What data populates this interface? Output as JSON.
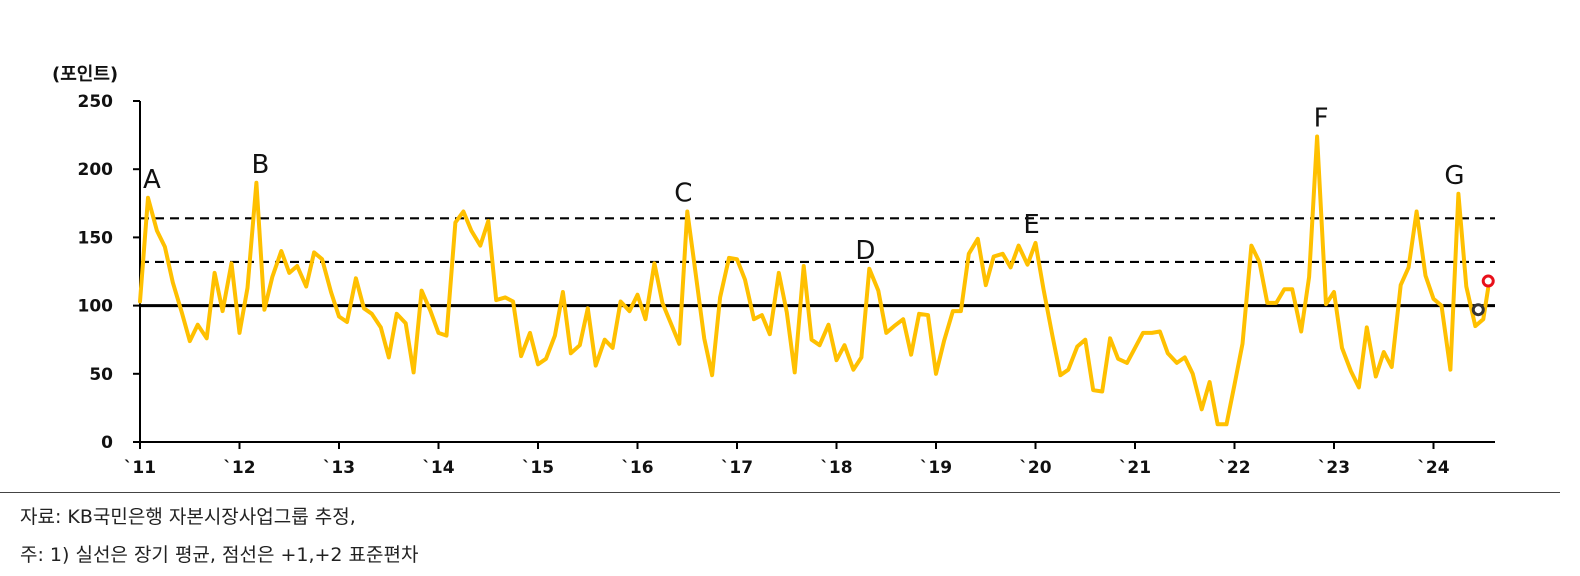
{
  "chart_data": {
    "type": "line",
    "unit_label": "(포인트)",
    "ylim": [
      0,
      250
    ],
    "yticks": [
      0,
      50,
      100,
      150,
      200,
      250
    ],
    "xlim": [
      2011.0,
      2024.55
    ],
    "xticks": [
      {
        "x": 2011,
        "label": "`11"
      },
      {
        "x": 2012,
        "label": "`12"
      },
      {
        "x": 2013,
        "label": "`13"
      },
      {
        "x": 2014,
        "label": "`14"
      },
      {
        "x": 2015,
        "label": "`15"
      },
      {
        "x": 2016,
        "label": "`16"
      },
      {
        "x": 2017,
        "label": "`17"
      },
      {
        "x": 2018,
        "label": "`18"
      },
      {
        "x": 2019,
        "label": "`19"
      },
      {
        "x": 2020,
        "label": "`20"
      },
      {
        "x": 2021,
        "label": "`21"
      },
      {
        "x": 2022,
        "label": "`22"
      },
      {
        "x": 2023,
        "label": "`23"
      },
      {
        "x": 2024,
        "label": "`24"
      }
    ],
    "reference_lines": [
      {
        "y": 100,
        "style": "solid"
      },
      {
        "y": 132,
        "style": "dashed"
      },
      {
        "y": 164,
        "style": "dashed"
      }
    ],
    "series": [
      {
        "color": "#FFC000",
        "x": [
          2011.0,
          2011.08,
          2011.17,
          2011.25,
          2011.33,
          2011.42,
          2011.5,
          2011.58,
          2011.67,
          2011.75,
          2011.83,
          2011.92,
          2012.0,
          2012.08,
          2012.17,
          2012.25,
          2012.33,
          2012.42,
          2012.5,
          2012.58,
          2012.67,
          2012.75,
          2012.83,
          2012.92,
          2013.0,
          2013.08,
          2013.17,
          2013.25,
          2013.33,
          2013.42,
          2013.5,
          2013.58,
          2013.67,
          2013.75,
          2013.83,
          2013.92,
          2014.0,
          2014.08,
          2014.17,
          2014.25,
          2014.33,
          2014.42,
          2014.5,
          2014.58,
          2014.67,
          2014.75,
          2014.83,
          2014.92,
          2015.0,
          2015.08,
          2015.17,
          2015.25,
          2015.33,
          2015.42,
          2015.5,
          2015.58,
          2015.67,
          2015.75,
          2015.83,
          2015.92,
          2016.0,
          2016.08,
          2016.17,
          2016.25,
          2016.33,
          2016.42,
          2016.5,
          2016.58,
          2016.67,
          2016.75,
          2016.83,
          2016.92,
          2017.0,
          2017.08,
          2017.17,
          2017.25,
          2017.33,
          2017.42,
          2017.5,
          2017.58,
          2017.67,
          2017.75,
          2017.83,
          2017.92,
          2018.0,
          2018.08,
          2018.17,
          2018.25,
          2018.33,
          2018.42,
          2018.5,
          2018.58,
          2018.67,
          2018.75,
          2018.83,
          2018.92,
          2019.0,
          2019.08,
          2019.17,
          2019.25,
          2019.33,
          2019.42,
          2019.5,
          2019.58,
          2019.67,
          2019.75,
          2019.83,
          2019.92,
          2020.0,
          2020.08,
          2020.17,
          2020.25,
          2020.33,
          2020.42,
          2020.5,
          2020.58,
          2020.67,
          2020.75,
          2020.83,
          2020.92,
          2021.0,
          2021.08,
          2021.17,
          2021.25,
          2021.33,
          2021.42,
          2021.5,
          2021.58,
          2021.67,
          2021.75,
          2021.83,
          2021.92,
          2022.0,
          2022.08,
          2022.17,
          2022.25,
          2022.33,
          2022.42,
          2022.5,
          2022.58,
          2022.67,
          2022.75,
          2022.83,
          2022.92,
          2023.0,
          2023.08,
          2023.17,
          2023.25,
          2023.33,
          2023.42,
          2023.5,
          2023.58,
          2023.67,
          2023.75,
          2023.83,
          2023.92,
          2024.0,
          2024.08,
          2024.17,
          2024.25,
          2024.33,
          2024.42,
          2024.5,
          2024.55
        ],
        "y": [
          103,
          179,
          155,
          143,
          117,
          95,
          74,
          86,
          76,
          124,
          96,
          131,
          80,
          113,
          190,
          97,
          121,
          140,
          124,
          129,
          114,
          139,
          134,
          110,
          92,
          88,
          120,
          98,
          94,
          84,
          62,
          94,
          87,
          51,
          111,
          96,
          80,
          78,
          161,
          169,
          155,
          144,
          162,
          104,
          106,
          103,
          63,
          80,
          57,
          61,
          78,
          110,
          65,
          71,
          98,
          56,
          75,
          69,
          103,
          96,
          108,
          90,
          131,
          102,
          88,
          72,
          169,
          126,
          76,
          49,
          106,
          135,
          134,
          119,
          90,
          93,
          79,
          124,
          95,
          51,
          129,
          75,
          71,
          86,
          60,
          71,
          53,
          62,
          127,
          111,
          80,
          85,
          90,
          64,
          94,
          93,
          50,
          74,
          96,
          96,
          138,
          149,
          115,
          136,
          138,
          128,
          144,
          130,
          146,
          112,
          78,
          49,
          53,
          70,
          75,
          38,
          37,
          76,
          61,
          58,
          69,
          80,
          80,
          81,
          65,
          58,
          62,
          50,
          24,
          44,
          13,
          13,
          42,
          72,
          144,
          132,
          102,
          102,
          112,
          112,
          81,
          121,
          224,
          101,
          110,
          69,
          52,
          40,
          84,
          48,
          66,
          55,
          115,
          128,
          169,
          122,
          105,
          100,
          53,
          182,
          114,
          85,
          90,
          113
        ]
      }
    ],
    "markers": [
      {
        "x": 2024.45,
        "y": 97,
        "color": "#333333"
      },
      {
        "x": 2024.55,
        "y": 118,
        "color": "#E8101A"
      }
    ],
    "annotations": [
      {
        "text": "A",
        "x": 2011.08,
        "y": 179
      },
      {
        "text": "B",
        "x": 2012.17,
        "y": 190
      },
      {
        "text": "C",
        "x": 2016.42,
        "y": 169
      },
      {
        "text": "D",
        "x": 2018.25,
        "y": 127
      },
      {
        "text": "E",
        "x": 2019.92,
        "y": 146
      },
      {
        "text": "F",
        "x": 2022.83,
        "y": 224
      },
      {
        "text": "G",
        "x": 2024.17,
        "y": 182
      }
    ]
  },
  "footnotes": {
    "source": "자료: KB국민은행 자본시장사업그룹 추정,",
    "note": "주: 1) 실선은 장기 평균, 점선은 +1,+2 표준편차"
  }
}
